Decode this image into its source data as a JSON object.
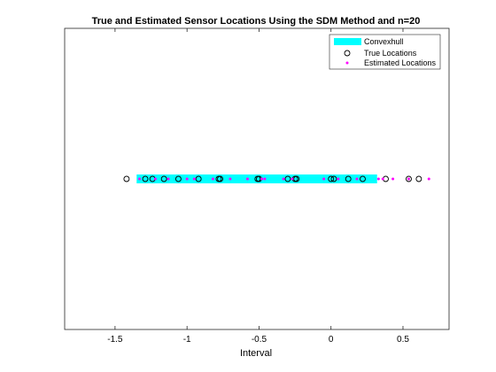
{
  "chart_data": {
    "type": "scatter",
    "title": "True and Estimated Sensor Locations Using the SDM Method and n=20",
    "xlabel": "Interval",
    "ylabel": "",
    "xlim": [
      -1.85,
      0.82
    ],
    "ylim": [
      -1,
      1
    ],
    "xticks": [
      -1.5,
      -1,
      -0.5,
      0,
      0.5
    ],
    "xtick_labels": [
      "-1.5",
      "-1",
      "-0.5",
      "0",
      "0.5"
    ],
    "grid": false,
    "legend_position": "top-right",
    "convexhull": {
      "name": "Convexhull",
      "x_range": [
        -1.35,
        0.32
      ],
      "color": "#00ffff"
    },
    "series": [
      {
        "name": "True Locations",
        "marker": "circle-open",
        "color": "#000000",
        "x": [
          -1.42,
          -1.29,
          -1.24,
          -1.16,
          -1.06,
          -0.92,
          -0.78,
          -0.77,
          -0.51,
          -0.5,
          -0.3,
          -0.25,
          -0.24,
          0.0,
          0.02,
          0.12,
          0.22,
          0.38,
          0.54,
          0.61
        ],
        "y": [
          0,
          0,
          0,
          0,
          0,
          0,
          0,
          0,
          0,
          0,
          0,
          0,
          0,
          0,
          0,
          0,
          0,
          0,
          0,
          0
        ]
      },
      {
        "name": "Estimated Locations",
        "marker": "dot",
        "color": "#ff00ff",
        "x": [
          -1.33,
          -1.22,
          -1.13,
          -1.0,
          -0.95,
          -0.82,
          -0.7,
          -0.48,
          -0.46,
          -0.33,
          -0.27,
          -0.05,
          0.05,
          0.18,
          0.33,
          0.36,
          0.43,
          0.54,
          0.68,
          -0.58
        ],
        "y": [
          0,
          0,
          0,
          0,
          0,
          0,
          0,
          0,
          0,
          0,
          0,
          0,
          0,
          0,
          0,
          0,
          0,
          0,
          0,
          0
        ]
      }
    ]
  }
}
